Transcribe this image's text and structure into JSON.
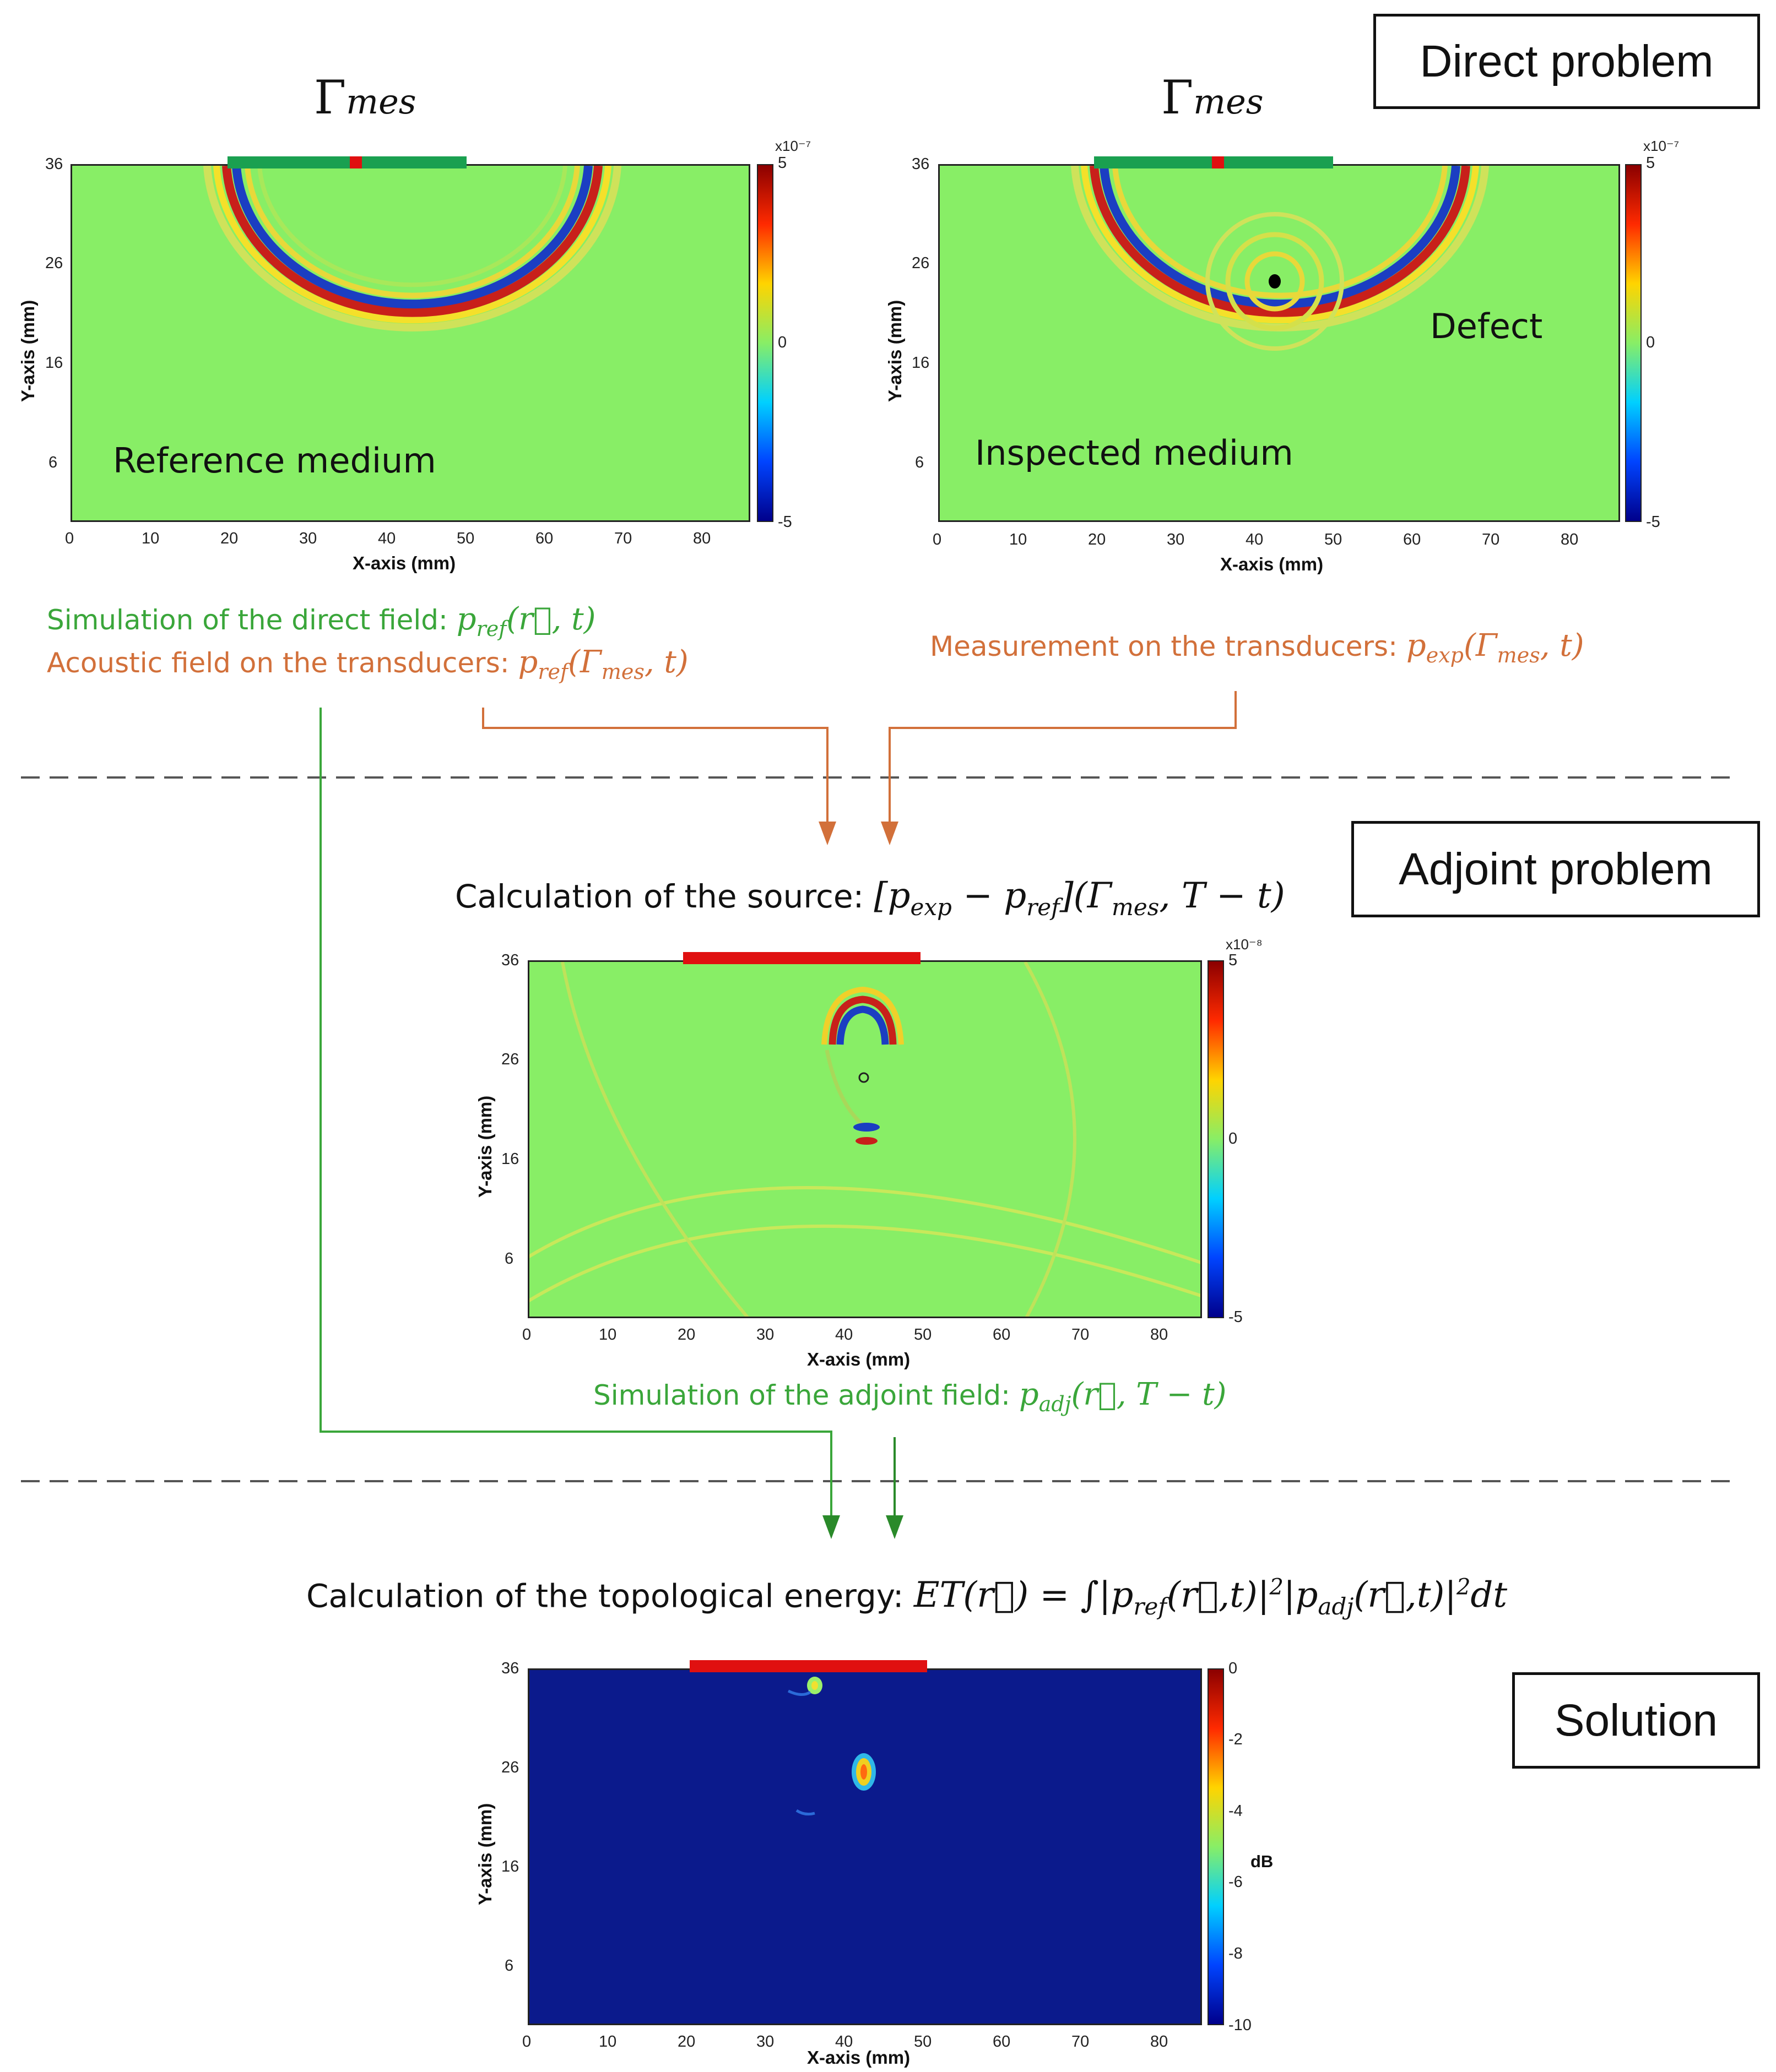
{
  "sections": {
    "direct": "Direct problem",
    "adjoint": "Adjoint problem",
    "solution": "Solution"
  },
  "gamma": {
    "symbol": "Γ",
    "sub": "mes"
  },
  "panels": {
    "reference": {
      "medium_label": "Reference medium",
      "xlabel": "X-axis (mm)",
      "ylabel": "Y-axis (mm)",
      "xticks": [
        "0",
        "10",
        "20",
        "30",
        "40",
        "50",
        "60",
        "70",
        "80"
      ],
      "yticks": [
        "36",
        "26",
        "16",
        "6"
      ],
      "cbar_ticks": [
        "5",
        "0",
        "-5"
      ],
      "cbar_exp": "x10⁻⁷"
    },
    "inspected": {
      "medium_label": "Inspected medium",
      "defect_label": "Defect",
      "xlabel": "X-axis (mm)",
      "ylabel": "Y-axis (mm)",
      "xticks": [
        "0",
        "10",
        "20",
        "30",
        "40",
        "50",
        "60",
        "70",
        "80"
      ],
      "yticks": [
        "36",
        "26",
        "16",
        "6"
      ],
      "cbar_ticks": [
        "5",
        "0",
        "-5"
      ],
      "cbar_exp": "x10⁻⁷"
    },
    "adjoint": {
      "xlabel": "X-axis (mm)",
      "ylabel": "Y-axis (mm)",
      "xticks": [
        "0",
        "10",
        "20",
        "30",
        "40",
        "50",
        "60",
        "70",
        "80"
      ],
      "yticks": [
        "36",
        "26",
        "16",
        "6"
      ],
      "cbar_ticks": [
        "5",
        "0",
        "-5"
      ],
      "cbar_exp": "x10⁻⁸"
    },
    "solution": {
      "xlabel": "X-axis (mm)",
      "ylabel": "Y-axis (mm)",
      "xticks": [
        "0",
        "10",
        "20",
        "30",
        "40",
        "50",
        "60",
        "70",
        "80"
      ],
      "yticks": [
        "36",
        "26",
        "16",
        "6"
      ],
      "cbar_ticks": [
        "0",
        "-2",
        "-4",
        "-6",
        "-8",
        "-10"
      ],
      "cbar_unit": "dB"
    }
  },
  "captions": {
    "sim_direct": "Simulation of the direct field:",
    "acoustic_field": "Acoustic field on the transducers:",
    "measurement": "Measurement on the transducers:",
    "source_calc": "Calculation of the source:",
    "sim_adjoint": "Simulation of the adjoint field:",
    "topo_energy": "Calculation of the topological energy:"
  },
  "math": {
    "p_ref_rt": "p_ref(r⃗, t)",
    "p_ref_gamma": "p_ref(Γ_mes, t)",
    "p_exp_gamma": "p_exp(Γ_mes, t)",
    "source": "[p_exp − p_ref](Γ_mes, T − t)",
    "p_adj": "p_adj(r⃗, T − t)",
    "energy": "ET(r⃗) = ∫|p_ref(r⃗,t)|²|p_adj(r⃗,t)|² dt"
  },
  "colors": {
    "green": "#3aa63a",
    "orange": "#d2703a",
    "field_bg": "#88ee66",
    "solution_bg": "#0b1a8c",
    "transducer_green": "#1aa050",
    "transducer_red": "#e01010"
  }
}
